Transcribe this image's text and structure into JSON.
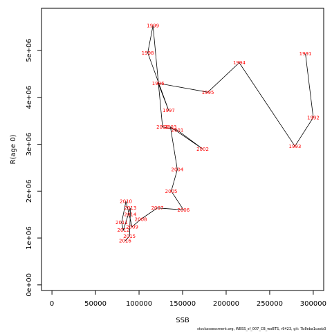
{
  "chart_data": {
    "type": "line",
    "xlabel": "SSB",
    "ylabel": "R(age 0)",
    "xlim": [
      -12000,
      312000
    ],
    "ylim": [
      -120000,
      5900000
    ],
    "x_ticks": [
      0,
      50000,
      100000,
      150000,
      200000,
      250000,
      300000
    ],
    "x_tick_labels": [
      "0",
      "50000",
      "100000",
      "150000",
      "200000",
      "250000",
      "300000"
    ],
    "y_ticks": [
      0,
      1000000,
      2000000,
      3000000,
      4000000,
      5000000
    ],
    "y_tick_labels": [
      "0e+00",
      "1e+06",
      "2e+06",
      "3e+06",
      "4e+06",
      "5e+06"
    ],
    "grid": false,
    "line_color": "#000000",
    "label_color": "#ff0000",
    "points": [
      {
        "year": "1991",
        "x": 291000,
        "y": 4930000
      },
      {
        "year": "1992",
        "x": 300000,
        "y": 3570000
      },
      {
        "year": "1993",
        "x": 279000,
        "y": 2960000
      },
      {
        "year": "1994",
        "x": 215000,
        "y": 4740000
      },
      {
        "year": "1995",
        "x": 179000,
        "y": 4110000
      },
      {
        "year": "1996",
        "x": 122000,
        "y": 4300000
      },
      {
        "year": "1997",
        "x": 134000,
        "y": 3720000
      },
      {
        "year": "1998",
        "x": 110000,
        "y": 4950000
      },
      {
        "year": "1999",
        "x": 116000,
        "y": 5530000
      },
      {
        "year": "2000",
        "x": 127000,
        "y": 3370000
      },
      {
        "year": "2001",
        "x": 144000,
        "y": 3300000
      },
      {
        "year": "2002",
        "x": 173000,
        "y": 2900000
      },
      {
        "year": "2003",
        "x": 136000,
        "y": 3370000
      },
      {
        "year": "2004",
        "x": 144000,
        "y": 2460000
      },
      {
        "year": "2005",
        "x": 137000,
        "y": 2000000
      },
      {
        "year": "2006",
        "x": 151000,
        "y": 1600000
      },
      {
        "year": "2007",
        "x": 121000,
        "y": 1640000
      },
      {
        "year": "2008",
        "x": 102000,
        "y": 1400000
      },
      {
        "year": "2009",
        "x": 92000,
        "y": 1240000
      },
      {
        "year": "2010",
        "x": 85000,
        "y": 1780000
      },
      {
        "year": "2011",
        "x": 80000,
        "y": 1330000
      },
      {
        "year": "2012",
        "x": 82000,
        "y": 1170000
      },
      {
        "year": "2013",
        "x": 90000,
        "y": 1640000
      },
      {
        "year": "2014",
        "x": 90000,
        "y": 1500000
      },
      {
        "year": "2015",
        "x": 89000,
        "y": 1040000
      },
      {
        "year": "2016",
        "x": 84000,
        "y": 940000
      }
    ]
  },
  "footer": "stockassessment.org, WBSS_sf_007_CB_woBTS, r9423, git: 7b8eba1caeb3"
}
